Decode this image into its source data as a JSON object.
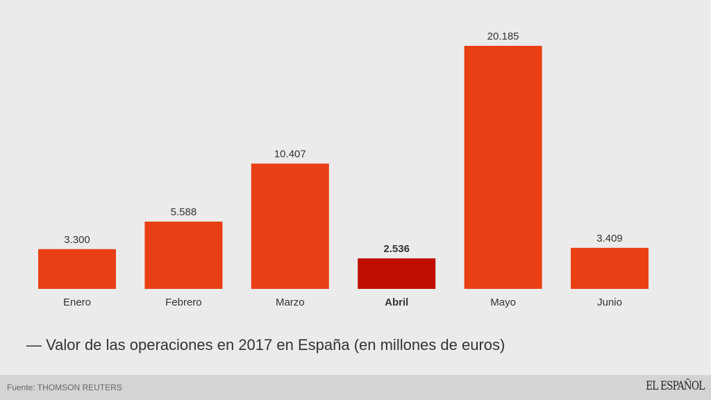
{
  "chart_data": {
    "type": "bar",
    "categories": [
      "Enero",
      "Febrero",
      "Marzo",
      "Abril",
      "Mayo",
      "Junio"
    ],
    "values": [
      3300,
      5588,
      10407,
      2536,
      20185,
      3409
    ],
    "value_labels": [
      "3.300",
      "5.588",
      "10.407",
      "2.536",
      "20.185",
      "3.409"
    ],
    "highlight_index": 3,
    "legend": "— Valor de las operaciones en 2017 en España (en millones de euros)",
    "ylim": [
      0,
      20185
    ],
    "grid": false,
    "colors": {
      "bar": "#e84014",
      "highlight": "#c00f00",
      "background": "#ebebeb"
    }
  },
  "footer": {
    "source": "Fuente: THOMSON REUTERS",
    "logo": "EL ESPAÑOL"
  }
}
